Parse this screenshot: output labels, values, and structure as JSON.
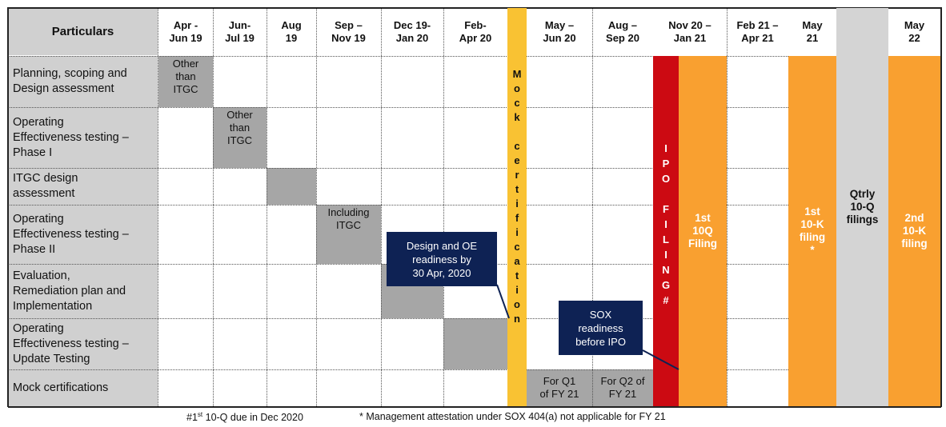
{
  "header": {
    "particulars": "Particulars",
    "columns": [
      "Apr -\nJun 19",
      "Jun-\nJul 19",
      "Aug\n19",
      "Sep –\nNov 19",
      "Dec 19-\nJan 20",
      "Feb-\nApr 20",
      "",
      "May –\nJun 20",
      "Aug –\nSep 20",
      "Nov 20 –\nJan 21",
      "Feb 21 –\nApr 21",
      "May\n21",
      "",
      "May\n22"
    ]
  },
  "rows": [
    "Planning, scoping and\nDesign assessment",
    "Operating\nEffectiveness testing –\nPhase I",
    "ITGC design\nassessment",
    "Operating\nEffectiveness testing –\nPhase II",
    "Evaluation,\nRemediation plan and\nImplementation",
    "Operating\nEffectiveness testing –\nUpdate Testing",
    "Mock certifications"
  ],
  "gray_blocks": {
    "r1": "Other\nthan\nITGC",
    "r2": "Other\nthan\nITGC",
    "r3": "",
    "r4": "Including\nITGC",
    "r5": "",
    "r6": ""
  },
  "mock_cells": {
    "q1": "For Q1\nof FY 21",
    "q2": "For Q2 of\nFY 21"
  },
  "mock_certification_letters": [
    "M",
    "o",
    "c",
    "k",
    "",
    "c",
    "e",
    "r",
    "t",
    "i",
    "f",
    "i",
    "c",
    "a",
    "t",
    "i",
    "o",
    "n"
  ],
  "ipo_letters": [
    "I",
    "P",
    "O",
    "",
    "F",
    "I",
    "L",
    "I",
    "N",
    "G",
    "#"
  ],
  "bands": {
    "first_10q": "1st\n10Q\nFiling",
    "first_10k": "1st\n10-K\nfiling\n*",
    "qtrly": "Qtrly\n10-Q\nfilings",
    "second_10k": "2nd\n10-K\nfiling"
  },
  "callouts": {
    "design_oe": "Design and OE\nreadiness by\n30 Apr, 2020",
    "sox": "SOX\nreadiness\nbefore IPO"
  },
  "footer": {
    "note1_prefix": "#1",
    "note1_sup": "st",
    "note1_suffix": " 10-Q due in Dec 2020",
    "note2": "* Management attestation under SOX 404(a) not applicable for FY 21"
  },
  "colors": {
    "mock_band": "#f9c233",
    "ipo_band": "#cc0a12",
    "orange_band": "#f9a030",
    "qtrly_band": "#d4d4d4",
    "gray_block": "#a6a6a6",
    "callout": "#0e2254"
  }
}
